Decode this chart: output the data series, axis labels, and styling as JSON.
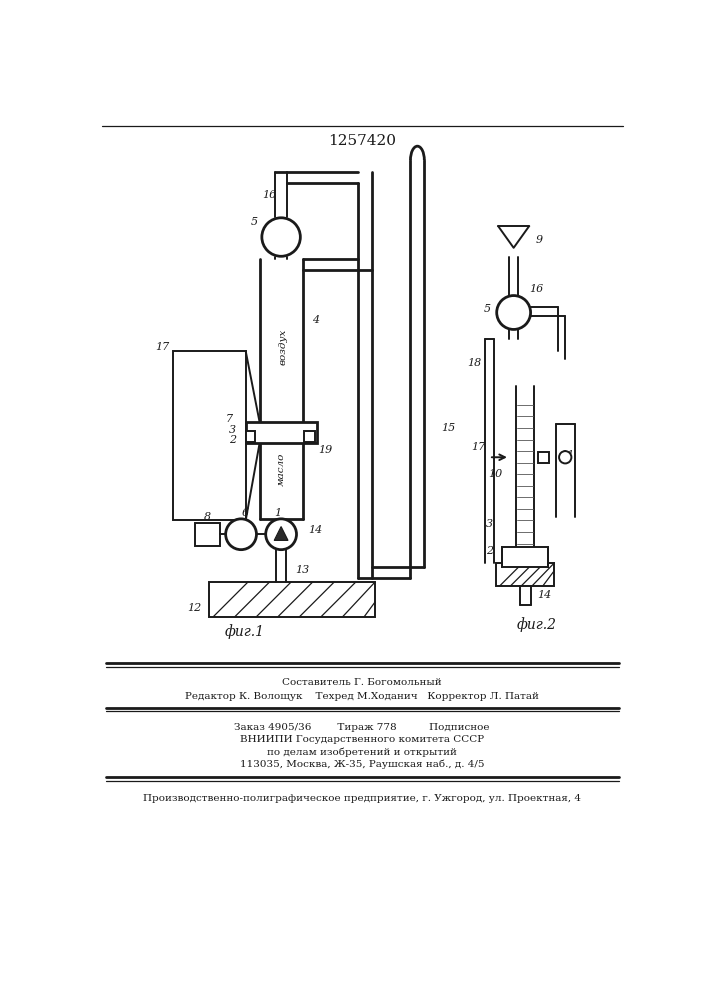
{
  "title": "1257420",
  "fig1_label": "фиг.1",
  "fig2_label": "фиг.2",
  "bg_color": "#ffffff",
  "line_color": "#1a1a1a",
  "footer_lines": [
    "Составитель Г. Богомольный",
    "Редактор К. Волощук    Техред М.Ходанич   Корректор Л. Патай",
    "Заказ 4905/36        Тираж 778          Подписное",
    "ВНИИПИ Государственного комитета СССР",
    "по делам изобретений и открытий",
    "113035, Москва, Ж-35, Раушская наб., д. 4/5",
    "Производственно-полиграфическое предприятие, г. Ужгород, ул. Проектная, 4"
  ]
}
